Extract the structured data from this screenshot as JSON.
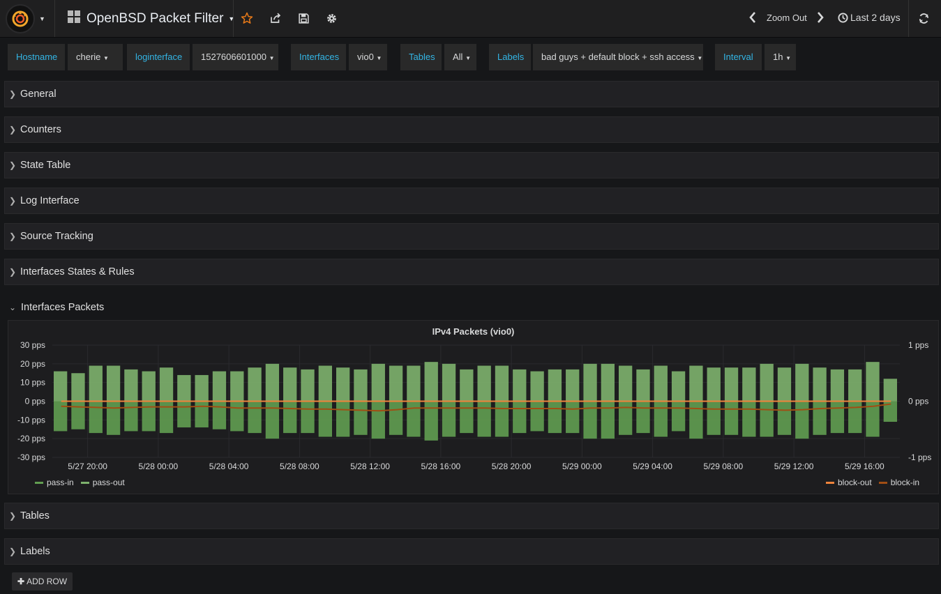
{
  "navbar": {
    "dashboard_title": "OpenBSD Packet Filter",
    "zoom_out_label": "Zoom Out",
    "time_range": "Last 2 days"
  },
  "variables": [
    {
      "label": "Hostname",
      "value": "cherie"
    },
    {
      "label": "loginterface",
      "value": "1527606601000"
    },
    {
      "label": "Interfaces",
      "value": "vio0"
    },
    {
      "label": "Tables",
      "value": "All"
    },
    {
      "label": "Labels",
      "value": "bad guys + default block + ssh access"
    },
    {
      "label": "Interval",
      "value": "1h"
    }
  ],
  "rows_top": [
    "General",
    "Counters",
    "State Table",
    "Log Interface",
    "Source Tracking",
    "Interfaces States & Rules"
  ],
  "open_row": "Interfaces Packets",
  "rows_bottom": [
    "Tables",
    "Labels"
  ],
  "add_row_label": "ADD ROW",
  "colors": {
    "accent_blue": "#33b5e5",
    "pass_in": "#629e51",
    "pass_out": "#7eb26d",
    "block_out": "#ef843c",
    "block_in": "#a14e14",
    "star": "#eb7b18"
  },
  "chart_data": {
    "type": "bar",
    "title": "IPv4 Packets (vio0)",
    "x_ticks": [
      "5/27 20:00",
      "5/28 00:00",
      "5/28 04:00",
      "5/28 08:00",
      "5/28 12:00",
      "5/28 16:00",
      "5/28 20:00",
      "5/29 00:00",
      "5/29 04:00",
      "5/29 08:00",
      "5/29 12:00",
      "5/29 16:00"
    ],
    "y_left_ticks": [
      "30 pps",
      "20 pps",
      "10 pps",
      "0 pps",
      "-10 pps",
      "-20 pps",
      "-30 pps"
    ],
    "y_right_ticks": [
      "1 pps",
      "0 pps",
      "-1 pps"
    ],
    "ylim_left": [
      -30,
      30
    ],
    "ylim_right": [
      -1,
      1
    ],
    "unit": "pps",
    "grid": true,
    "x_start": "5/27 18:00",
    "interval_hours": 1,
    "series": [
      {
        "name": "pass-out",
        "axis": "left",
        "style": "bars",
        "values": [
          16,
          15,
          19,
          19,
          17,
          16,
          18,
          14,
          14,
          16,
          16,
          18,
          20,
          18,
          17,
          19,
          18,
          17,
          20,
          19,
          19,
          21,
          20,
          17,
          19,
          19,
          17,
          16,
          17,
          17,
          20,
          20,
          19,
          17,
          19,
          16,
          19,
          18,
          18,
          18,
          20,
          18,
          20,
          18,
          17,
          17,
          21,
          12
        ]
      },
      {
        "name": "pass-in",
        "axis": "left",
        "style": "bars",
        "values": [
          -16,
          -15,
          -17,
          -18,
          -16,
          -16,
          -17,
          -14,
          -14,
          -15,
          -16,
          -17,
          -20,
          -17,
          -17,
          -19,
          -19,
          -18,
          -20,
          -18,
          -19,
          -21,
          -19,
          -17,
          -19,
          -19,
          -17,
          -16,
          -17,
          -17,
          -20,
          -20,
          -18,
          -17,
          -19,
          -16,
          -20,
          -18,
          -18,
          -19,
          -19,
          -18,
          -20,
          -18,
          -17,
          -17,
          -19,
          -11
        ]
      },
      {
        "name": "block-out",
        "axis": "right",
        "style": "line",
        "values": [
          0,
          0,
          0,
          0,
          0,
          0,
          0,
          0,
          0,
          0,
          0,
          0,
          0,
          0,
          0,
          0,
          0,
          0,
          0,
          0,
          0,
          0,
          0,
          0,
          0,
          0,
          0,
          0,
          0,
          0,
          0,
          0,
          0,
          0,
          0,
          0,
          0,
          0,
          0,
          0,
          0,
          0,
          0,
          0,
          0,
          0,
          0,
          0
        ]
      },
      {
        "name": "block-in",
        "axis": "right",
        "style": "line",
        "values": [
          -0.09,
          -0.1,
          -0.11,
          -0.12,
          -0.11,
          -0.1,
          -0.1,
          -0.1,
          -0.09,
          -0.1,
          -0.12,
          -0.12,
          -0.12,
          -0.13,
          -0.14,
          -0.14,
          -0.15,
          -0.16,
          -0.17,
          -0.15,
          -0.12,
          -0.12,
          -0.12,
          -0.12,
          -0.12,
          -0.13,
          -0.13,
          -0.13,
          -0.13,
          -0.14,
          -0.12,
          -0.12,
          -0.11,
          -0.12,
          -0.12,
          -0.12,
          -0.13,
          -0.14,
          -0.14,
          -0.14,
          -0.15,
          -0.16,
          -0.15,
          -0.13,
          -0.12,
          -0.11,
          -0.09,
          -0.05
        ]
      }
    ],
    "legend_left": [
      "pass-in",
      "pass-out"
    ],
    "legend_right": [
      "block-out",
      "block-in"
    ]
  }
}
